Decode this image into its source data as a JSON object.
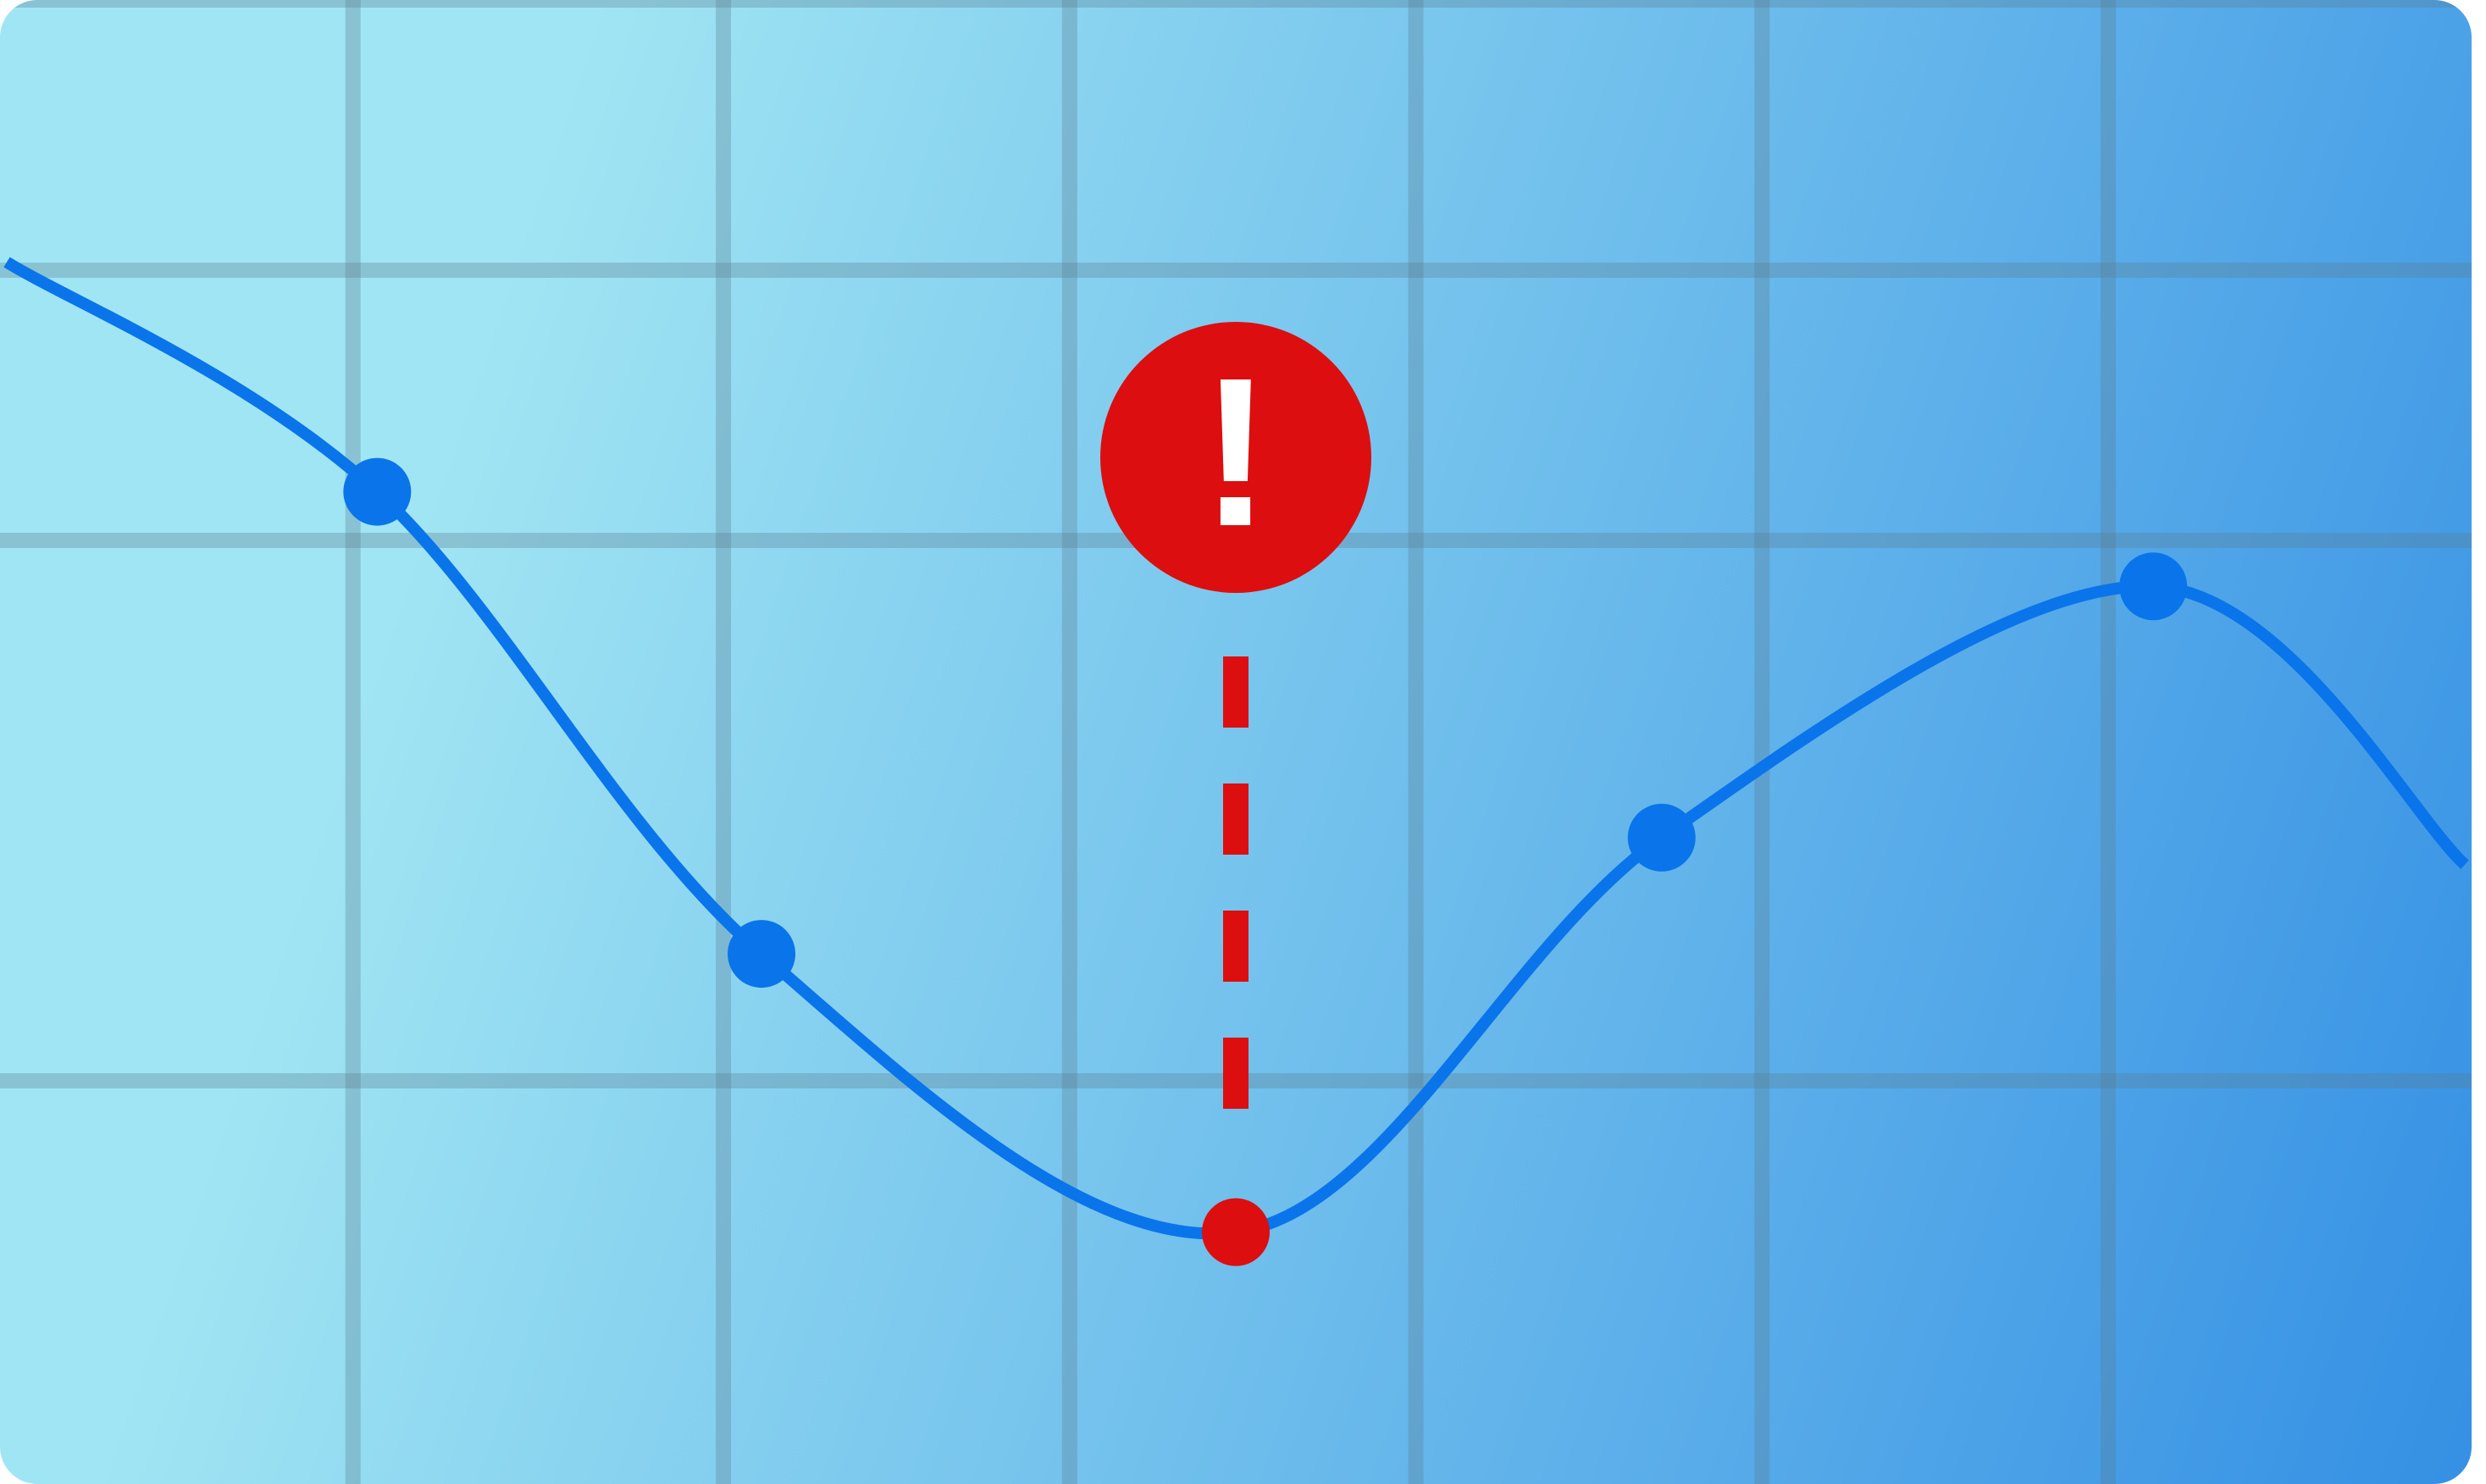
{
  "colors": {
    "background_light": "#a0e5f3",
    "background_dark": "#3590e4",
    "line": "#0a74ea",
    "point": "#0a74ea",
    "highlight": "#dd0e0f",
    "grid": "#5a7d8e",
    "alert_symbol": "#ffffff"
  },
  "icons": {
    "alert": "exclamation-circle-icon"
  },
  "chart_data": {
    "type": "line",
    "title": "",
    "xlabel": "",
    "ylabel": "",
    "grid": true,
    "curve": "smooth",
    "xlim": [
      0,
      7.1
    ],
    "ylim": [
      0,
      5
    ],
    "x_gridlines": [
      1,
      2.07,
      3.07,
      4.07,
      5.07,
      6.07
    ],
    "y_gridlines": [
      1,
      3,
      4,
      5
    ],
    "series": [
      {
        "x": [
          0,
          1.07,
          2.18,
          3.55,
          4.78,
          6.2,
          7.1
        ],
        "y": [
          4.03,
          3.18,
          1.47,
          0.44,
          1.9,
          2.83,
          1.8
        ]
      }
    ],
    "markers": [
      {
        "x": 1.07,
        "y": 3.18
      },
      {
        "x": 2.18,
        "y": 1.47
      },
      {
        "x": 4.78,
        "y": 1.9
      },
      {
        "x": 6.2,
        "y": 2.83
      }
    ],
    "highlight": {
      "x": 3.55,
      "y": 0.44,
      "annotation": "!"
    }
  }
}
